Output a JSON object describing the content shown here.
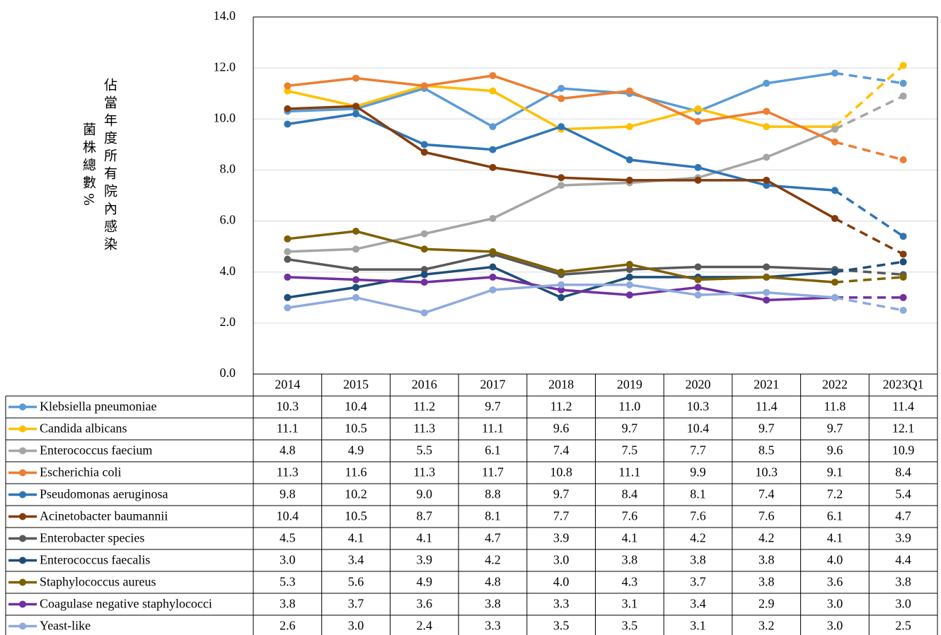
{
  "chart_data": {
    "type": "line",
    "ylabel": "佔當年度所有院內感染菌株總數%",
    "categories": [
      "2014",
      "2015",
      "2016",
      "2017",
      "2018",
      "2019",
      "2020",
      "2021",
      "2022",
      "2023Q1"
    ],
    "ylim": [
      0,
      14
    ],
    "yticks": [
      {
        "value": 0,
        "label": "0.0"
      },
      {
        "value": 2,
        "label": "2.0"
      },
      {
        "value": 4,
        "label": "4.0"
      },
      {
        "value": 6,
        "label": "6.0"
      },
      {
        "value": 8,
        "label": "8.0"
      },
      {
        "value": 10,
        "label": "10.0"
      },
      {
        "value": 12,
        "label": "12.0"
      },
      {
        "value": 14,
        "label": "14.0"
      }
    ],
    "grid": true,
    "last_segment_dashed": true,
    "series": [
      {
        "name": "Klebsiella pneumoniae",
        "color": "#5b9bd5",
        "values": [
          10.3,
          10.4,
          11.2,
          9.7,
          11.2,
          11.0,
          10.3,
          11.4,
          11.8,
          11.4
        ],
        "value_labels": [
          "10.3",
          "10.4",
          "11.2",
          "9.7",
          "11.2",
          "11.0",
          "10.3",
          "11.4",
          "11.8",
          "11.4"
        ]
      },
      {
        "name": "Candida albicans",
        "color": "#ffc000",
        "values": [
          11.1,
          10.5,
          11.3,
          11.1,
          9.6,
          9.7,
          10.4,
          9.7,
          9.7,
          12.1
        ],
        "value_labels": [
          "11.1",
          "10.5",
          "11.3",
          "11.1",
          "9.6",
          "9.7",
          "10.4",
          "9.7",
          "9.7",
          "12.1"
        ]
      },
      {
        "name": "Enterococcus faecium",
        "color": "#a5a5a5",
        "values": [
          4.8,
          4.9,
          5.5,
          6.1,
          7.4,
          7.5,
          7.7,
          8.5,
          9.6,
          10.9
        ],
        "value_labels": [
          "4.8",
          "4.9",
          "5.5",
          "6.1",
          "7.4",
          "7.5",
          "7.7",
          "8.5",
          "9.6",
          "10.9"
        ]
      },
      {
        "name": "Escherichia coli",
        "color": "#ed7d31",
        "values": [
          11.3,
          11.6,
          11.3,
          11.7,
          10.8,
          11.1,
          9.9,
          10.3,
          9.1,
          8.4
        ],
        "value_labels": [
          "11.3",
          "11.6",
          "11.3",
          "11.7",
          "10.8",
          "11.1",
          "9.9",
          "10.3",
          "9.1",
          "8.4"
        ]
      },
      {
        "name": "Pseudomonas aeruginosa",
        "color": "#2e75b6",
        "values": [
          9.8,
          10.2,
          9.0,
          8.8,
          9.7,
          8.4,
          8.1,
          7.4,
          7.2,
          5.4
        ],
        "value_labels": [
          "9.8",
          "10.2",
          "9.0",
          "8.8",
          "9.7",
          "8.4",
          "8.1",
          "7.4",
          "7.2",
          "5.4"
        ]
      },
      {
        "name": "Acinetobacter baumannii",
        "color": "#843c0c",
        "values": [
          10.4,
          10.5,
          8.7,
          8.1,
          7.7,
          7.6,
          7.6,
          7.6,
          6.1,
          4.7
        ],
        "value_labels": [
          "10.4",
          "10.5",
          "8.7",
          "8.1",
          "7.7",
          "7.6",
          "7.6",
          "7.6",
          "6.1",
          "4.7"
        ]
      },
      {
        "name": "Enterobacter species",
        "color": "#595959",
        "values": [
          4.5,
          4.1,
          4.1,
          4.7,
          3.9,
          4.1,
          4.2,
          4.2,
          4.1,
          3.9
        ],
        "value_labels": [
          "4.5",
          "4.1",
          "4.1",
          "4.7",
          "3.9",
          "4.1",
          "4.2",
          "4.2",
          "4.1",
          "3.9"
        ]
      },
      {
        "name": "Enterococcus faecalis",
        "color": "#1f4e79",
        "values": [
          3.0,
          3.4,
          3.9,
          4.2,
          3.0,
          3.8,
          3.8,
          3.8,
          4.0,
          4.4
        ],
        "value_labels": [
          "3.0",
          "3.4",
          "3.9",
          "4.2",
          "3.0",
          "3.8",
          "3.8",
          "3.8",
          "4.0",
          "4.4"
        ]
      },
      {
        "name": "Staphylococcus aureus",
        "color": "#7f6000",
        "values": [
          5.3,
          5.6,
          4.9,
          4.8,
          4.0,
          4.3,
          3.7,
          3.8,
          3.6,
          3.8
        ],
        "value_labels": [
          "5.3",
          "5.6",
          "4.9",
          "4.8",
          "4.0",
          "4.3",
          "3.7",
          "3.8",
          "3.6",
          "3.8"
        ]
      },
      {
        "name": "Coagulase negative staphylococci",
        "color": "#7030a0",
        "values": [
          3.8,
          3.7,
          3.6,
          3.8,
          3.3,
          3.1,
          3.4,
          2.9,
          3.0,
          3.0
        ],
        "value_labels": [
          "3.8",
          "3.7",
          "3.6",
          "3.8",
          "3.3",
          "3.1",
          "3.4",
          "2.9",
          "3.0",
          "3.0"
        ]
      },
      {
        "name": "Yeast-like",
        "color": "#8faadc",
        "values": [
          2.6,
          3.0,
          2.4,
          3.3,
          3.5,
          3.5,
          3.1,
          3.2,
          3.0,
          2.5
        ],
        "value_labels": [
          "2.6",
          "3.0",
          "2.4",
          "3.3",
          "3.5",
          "3.5",
          "3.1",
          "3.2",
          "3.0",
          "2.5"
        ]
      }
    ]
  }
}
